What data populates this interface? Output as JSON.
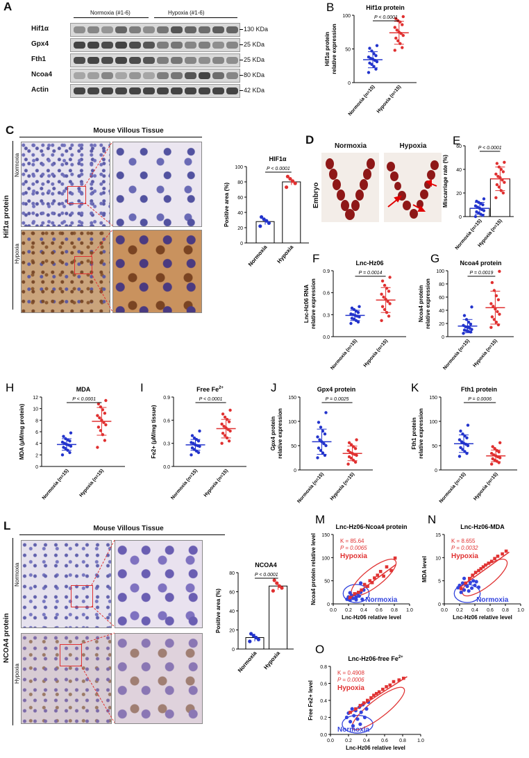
{
  "panels": {
    "A": {
      "letter": "A",
      "group_normoxia": "Normoxia (#1-6)",
      "group_hypoxia": "Hypoxia (#1-6)",
      "rows": [
        {
          "name": "Hif1α",
          "size": "130 KDa"
        },
        {
          "name": "Gpx4",
          "size": "25 KDa"
        },
        {
          "name": "Fth1",
          "size": "25 KDa"
        },
        {
          "name": "Ncoa4",
          "size": "80 KDa"
        },
        {
          "name": "Actin",
          "size": "42 KDa"
        }
      ]
    },
    "C": {
      "letter": "C",
      "header": "Mouse Villous Tissue",
      "side_label": "Hif1α protein",
      "row_normoxia": "Normoxia",
      "row_hypoxia": "Hypoxia"
    },
    "D": {
      "letter": "D",
      "col_normoxia": "Normoxia",
      "col_hypoxia": "Hypoxia",
      "row_label": "Embryo"
    },
    "L": {
      "letter": "L",
      "header": "Mouse Villous Tissue",
      "side_label": "NCOA4 protein",
      "row_normoxia": "Normoxia",
      "row_hypoxia": "Hypoxia"
    }
  },
  "chart_data": [
    {
      "id": "B",
      "type": "scatter",
      "letter": "B",
      "title": "Hif1α protein",
      "ylabel": "Hif1α protein\nrelative expression",
      "ylim": [
        0,
        100
      ],
      "yticks": [
        0,
        50,
        100
      ],
      "categories": [
        "Normoxia (n=15)",
        "Hypoxia (n=15)"
      ],
      "pvalue": "P < 0.0001",
      "series": [
        {
          "name": "Normoxia (n=15)",
          "color": "#2233cc",
          "mean": 34,
          "sd": 12,
          "values": [
            15,
            20,
            24,
            27,
            29,
            31,
            33,
            35,
            36,
            38,
            40,
            43,
            47,
            51,
            55
          ]
        },
        {
          "name": "Hypoxia (n=15)",
          "color": "#e03030",
          "mean": 74,
          "sd": 17,
          "values": [
            48,
            52,
            58,
            62,
            66,
            70,
            73,
            75,
            78,
            82,
            86,
            90,
            92,
            95,
            98
          ]
        }
      ]
    },
    {
      "id": "C",
      "type": "bar",
      "title": "HIF1α",
      "ylabel": "Positive area (%)",
      "ylim": [
        0,
        100
      ],
      "yticks": [
        0,
        20,
        40,
        60,
        80,
        100
      ],
      "categories": [
        "Normoxia",
        "Hypoxia"
      ],
      "pvalue": "P < 0.0001",
      "series": [
        {
          "name": "",
          "values": [
            28,
            80
          ],
          "points": [
            [
              22,
              26,
              29,
              31,
              34
            ],
            [
              73,
              78,
              81,
              84,
              87
            ]
          ],
          "colors": [
            "#2233cc",
            "#e03030"
          ]
        }
      ]
    },
    {
      "id": "E",
      "type": "scatter",
      "letter": "E",
      "title": "",
      "ylabel": "Miscarriage rate (%)",
      "ylim": [
        0,
        60
      ],
      "yticks": [
        0,
        20,
        40,
        60
      ],
      "categories": [
        "Normoxia (n=15)",
        "Hypoxia (n=15)"
      ],
      "pvalue": "P < 0.0001",
      "bars": true,
      "series": [
        {
          "name": "Normoxia (n=15)",
          "color": "#2233cc",
          "mean": 7,
          "sd": 5,
          "values": [
            0,
            1,
            2,
            3,
            4,
            5,
            6,
            7,
            8,
            9,
            10,
            11,
            12,
            13,
            15
          ]
        },
        {
          "name": "Hypoxia (n=15)",
          "color": "#e03030",
          "mean": 32,
          "sd": 10,
          "values": [
            16,
            20,
            22,
            25,
            27,
            29,
            31,
            33,
            34,
            36,
            38,
            40,
            42,
            45,
            46
          ]
        }
      ]
    },
    {
      "id": "F",
      "type": "scatter",
      "letter": "F",
      "title": "Lnc-Hz06",
      "ylabel": "Lnc-Hz06 RNA\nrelative expression",
      "ylim": [
        0,
        0.9
      ],
      "yticks": [
        0.0,
        0.3,
        0.6,
        0.9
      ],
      "ytick_labels": [
        "0.0",
        "0.3",
        "0.6",
        "0.9"
      ],
      "categories": [
        "Normoxia (n=15)",
        "Hypoxia (n=15)"
      ],
      "pvalue": "P = 0.0014",
      "series": [
        {
          "name": "Normoxia (n=15)",
          "color": "#2233cc",
          "mean": 0.29,
          "sd": 0.07,
          "values": [
            0.18,
            0.2,
            0.22,
            0.24,
            0.25,
            0.27,
            0.28,
            0.29,
            0.3,
            0.31,
            0.33,
            0.35,
            0.37,
            0.39,
            0.41
          ]
        },
        {
          "name": "Hypoxia (n=15)",
          "color": "#e03030",
          "mean": 0.5,
          "sd": 0.17,
          "values": [
            0.22,
            0.28,
            0.33,
            0.37,
            0.41,
            0.45,
            0.48,
            0.51,
            0.54,
            0.58,
            0.62,
            0.66,
            0.7,
            0.76,
            0.81
          ]
        }
      ]
    },
    {
      "id": "G",
      "type": "scatter",
      "letter": "G",
      "title": "Ncoa4 protein",
      "ylabel": "Ncoa4 protein\nrelative expression",
      "ylim": [
        0,
        100
      ],
      "yticks": [
        0,
        20,
        40,
        60,
        80,
        100
      ],
      "categories": [
        "Normoxia (n=15)",
        "Hypoxia (n=15)"
      ],
      "pvalue": "P = 0.0019",
      "series": [
        {
          "name": "Normoxia (n=15)",
          "color": "#2233cc",
          "mean": 16,
          "sd": 10,
          "values": [
            5,
            7,
            8,
            9,
            10,
            11,
            13,
            14,
            15,
            17,
            19,
            22,
            26,
            32,
            45
          ]
        },
        {
          "name": "Hypoxia (n=15)",
          "color": "#e03030",
          "mean": 44,
          "sd": 25,
          "values": [
            14,
            18,
            22,
            26,
            30,
            34,
            38,
            42,
            46,
            50,
            56,
            62,
            70,
            82,
            99
          ]
        }
      ]
    },
    {
      "id": "H",
      "type": "scatter",
      "letter": "H",
      "title": "MDA",
      "ylabel": "MDA (μM/mg protein)",
      "ylim": [
        0,
        12
      ],
      "yticks": [
        0,
        2,
        4,
        6,
        8,
        10,
        12
      ],
      "categories": [
        "Normoxia (n=15)",
        "Hypoxia (n=15)"
      ],
      "pvalue": "P < 0.0001",
      "series": [
        {
          "name": "Normoxia (n=15)",
          "color": "#2233cc",
          "mean": 3.8,
          "sd": 1.0,
          "values": [
            2.0,
            2.4,
            2.8,
            3.1,
            3.3,
            3.5,
            3.7,
            3.8,
            4.0,
            4.2,
            4.4,
            4.6,
            4.8,
            5.2,
            5.8
          ]
        },
        {
          "name": "Hypoxia (n=15)",
          "color": "#e03030",
          "mean": 7.8,
          "sd": 2.4,
          "values": [
            3.3,
            4.5,
            5.5,
            6.2,
            6.8,
            7.2,
            7.6,
            8.0,
            8.4,
            8.8,
            9.2,
            9.8,
            10.3,
            10.8,
            11.4
          ]
        }
      ]
    },
    {
      "id": "I",
      "type": "scatter",
      "letter": "I",
      "title": "Free Fe",
      "title_sup": "2+",
      "ylabel": "Fe2+ (μM/mg tissue)",
      "ylim": [
        0,
        0.9
      ],
      "yticks": [
        0.0,
        0.3,
        0.6,
        0.9
      ],
      "ytick_labels": [
        "0.0",
        "0.3",
        "0.6",
        "0.9"
      ],
      "categories": [
        "Normoxia (n=15)",
        "Hypoxia (n=15)"
      ],
      "pvalue": "P < 0.0001",
      "series": [
        {
          "name": "Normoxia (n=15)",
          "color": "#2233cc",
          "mean": 0.28,
          "sd": 0.07,
          "values": [
            0.15,
            0.18,
            0.2,
            0.22,
            0.24,
            0.26,
            0.27,
            0.28,
            0.3,
            0.31,
            0.33,
            0.35,
            0.37,
            0.4,
            0.46
          ]
        },
        {
          "name": "Hypoxia (n=15)",
          "color": "#e03030",
          "mean": 0.49,
          "sd": 0.12,
          "values": [
            0.3,
            0.33,
            0.37,
            0.4,
            0.43,
            0.46,
            0.48,
            0.5,
            0.52,
            0.55,
            0.58,
            0.61,
            0.64,
            0.68,
            0.73
          ]
        }
      ]
    },
    {
      "id": "J",
      "type": "scatter",
      "letter": "J",
      "title": "Gpx4 protein",
      "ylabel": "Gpx4 protein\nrelative expression",
      "ylim": [
        0,
        150
      ],
      "yticks": [
        0,
        50,
        100,
        150
      ],
      "categories": [
        "Normoxia (n=15)",
        "Hypoxia (n=15)"
      ],
      "pvalue": "P = 0.0025",
      "series": [
        {
          "name": "Normoxia (n=15)",
          "color": "#2233cc",
          "mean": 58,
          "sd": 26,
          "values": [
            25,
            30,
            35,
            40,
            45,
            50,
            54,
            58,
            62,
            68,
            74,
            80,
            88,
            98,
            118
          ]
        },
        {
          "name": "Hypoxia (n=15)",
          "color": "#e03030",
          "mean": 34,
          "sd": 15,
          "values": [
            12,
            16,
            20,
            24,
            27,
            30,
            32,
            34,
            36,
            40,
            44,
            48,
            52,
            56,
            62
          ]
        }
      ]
    },
    {
      "id": "K",
      "type": "scatter",
      "letter": "K",
      "title": "Fth1 protein",
      "ylabel": "Fth1 protein\nrelative expression",
      "ylim": [
        0,
        150
      ],
      "yticks": [
        0,
        50,
        100,
        150
      ],
      "categories": [
        "Normoxia (n=15)",
        "Hypoxia (n=15)"
      ],
      "pvalue": "P = 0.0006",
      "series": [
        {
          "name": "Normoxia (n=15)",
          "color": "#2233cc",
          "mean": 54,
          "sd": 18,
          "values": [
            28,
            34,
            38,
            42,
            46,
            50,
            53,
            55,
            58,
            62,
            66,
            70,
            74,
            80,
            92
          ]
        },
        {
          "name": "Hypoxia (n=15)",
          "color": "#e03030",
          "mean": 29,
          "sd": 12,
          "values": [
            12,
            15,
            18,
            20,
            23,
            25,
            27,
            29,
            31,
            34,
            37,
            40,
            44,
            48,
            56
          ]
        }
      ]
    },
    {
      "id": "L",
      "type": "bar",
      "title": "NCOA4",
      "ylabel": "Positive area (%)",
      "ylim": [
        0,
        80
      ],
      "yticks": [
        0,
        20,
        40,
        60,
        80
      ],
      "categories": [
        "Normoxia",
        "Hypoxia"
      ],
      "pvalue": "P < 0.0001",
      "series": [
        {
          "name": "",
          "values": [
            12,
            66
          ],
          "points": [
            [
              8,
              10,
              12,
              14,
              16
            ],
            [
              61,
              64,
              66,
              69,
              72
            ]
          ],
          "colors": [
            "#2233cc",
            "#e03030"
          ]
        }
      ]
    },
    {
      "id": "M",
      "type": "scatter",
      "letter": "M",
      "title": "Lnc-Hz06-Ncoa4 protein",
      "xlabel": "Lnc-Hz06  relative level",
      "ylabel": "Ncoa4 protein relative level",
      "xlim": [
        0,
        1
      ],
      "ylim": [
        0,
        150
      ],
      "xticks": [
        0.0,
        0.2,
        0.4,
        0.6,
        0.8,
        1.0
      ],
      "yticks": [
        0,
        50,
        100,
        150
      ],
      "xtick_labels": [
        "0.0",
        "0.2",
        "0.4",
        "0.6",
        "0.8",
        "1.0"
      ],
      "annotation_k": "K = 85.64",
      "annotation_p": "P = 0.0065",
      "label_hypoxia": "Hypoxia",
      "label_normoxia": "Normoxia",
      "series": [
        {
          "name": "Normoxia",
          "color": "#3344dd",
          "x": [
            0.18,
            0.2,
            0.22,
            0.24,
            0.26,
            0.28,
            0.3,
            0.32,
            0.34,
            0.36,
            0.38,
            0.4,
            0.22,
            0.3,
            0.36
          ],
          "y": [
            10,
            15,
            8,
            18,
            12,
            20,
            14,
            22,
            17,
            25,
            10,
            30,
            24,
            9,
            45
          ]
        },
        {
          "name": "Hypoxia",
          "color": "#e03333",
          "x": [
            0.22,
            0.28,
            0.33,
            0.37,
            0.41,
            0.45,
            0.48,
            0.51,
            0.54,
            0.58,
            0.62,
            0.66,
            0.7,
            0.76,
            0.81
          ],
          "y": [
            14,
            22,
            25,
            30,
            42,
            38,
            50,
            46,
            56,
            62,
            70,
            60,
            80,
            72,
            99
          ]
        }
      ],
      "fit": [
        [
          0.2,
          10
        ],
        [
          0.82,
          85
        ]
      ],
      "fit_color": "#e03333"
    },
    {
      "id": "N",
      "type": "scatter",
      "letter": "N",
      "title": "Lnc-Hz06-MDA",
      "xlabel": "Lnc-Hz06 relative level",
      "ylabel": "MDA level",
      "xlim": [
        0,
        1
      ],
      "ylim": [
        0,
        15
      ],
      "xticks": [
        0.0,
        0.2,
        0.4,
        0.6,
        0.8,
        1.0
      ],
      "yticks": [
        0,
        5,
        10,
        15
      ],
      "xtick_labels": [
        "0.0",
        "0.2",
        "0.4",
        "0.6",
        "0.8",
        "1.0"
      ],
      "annotation_k": "K = 8.655",
      "annotation_p": "P = 0.0032",
      "label_hypoxia": "Hypoxia",
      "label_normoxia": "Normoxia",
      "series": [
        {
          "name": "Normoxia",
          "color": "#3344dd",
          "x": [
            0.18,
            0.2,
            0.22,
            0.24,
            0.26,
            0.28,
            0.3,
            0.32,
            0.34,
            0.36,
            0.38,
            0.4,
            0.42,
            0.45,
            0.26
          ],
          "y": [
            3.5,
            4.0,
            2.5,
            4.5,
            3.0,
            4.2,
            3.8,
            2.8,
            4.6,
            3.4,
            5.0,
            4.0,
            4.8,
            3.6,
            5.5
          ]
        },
        {
          "name": "Hypoxia",
          "color": "#e03333",
          "x": [
            0.22,
            0.28,
            0.33,
            0.37,
            0.41,
            0.45,
            0.48,
            0.51,
            0.54,
            0.58,
            0.62,
            0.66,
            0.7,
            0.76,
            0.81
          ],
          "y": [
            3.3,
            4.5,
            5.5,
            6.2,
            6.8,
            7.2,
            7.6,
            8.0,
            8.4,
            8.8,
            9.2,
            9.8,
            10.3,
            10.8,
            11.4
          ]
        }
      ],
      "fit": [
        [
          0.2,
          3.5
        ],
        [
          0.85,
          11.2
        ]
      ],
      "fit_color": "#e03333"
    },
    {
      "id": "O",
      "type": "scatter",
      "letter": "O",
      "title": "Lnc-Hz06-free Fe",
      "title_sup": "2+",
      "xlabel": "Lnc-Hz06 relative level",
      "ylabel": "Free Fe2+ level",
      "xlim": [
        0,
        1
      ],
      "ylim": [
        0,
        0.8
      ],
      "xticks": [
        0.0,
        0.2,
        0.4,
        0.6,
        0.8,
        1.0
      ],
      "yticks": [
        0.0,
        0.2,
        0.4,
        0.6,
        0.8
      ],
      "xtick_labels": [
        "0.0",
        "0.2",
        "0.4",
        "0.6",
        "0.8",
        "1.0"
      ],
      "ytick_labels": [
        "0.0",
        "0.2",
        "0.4",
        "0.6",
        "0.8"
      ],
      "annotation_k": "K = 0.4908",
      "annotation_p": "P = 0.0006",
      "label_hypoxia": "Hypoxia",
      "label_normoxia": "Normoxia",
      "series": [
        {
          "name": "Normoxia",
          "color": "#3344dd",
          "x": [
            0.18,
            0.2,
            0.22,
            0.24,
            0.26,
            0.28,
            0.3,
            0.32,
            0.34,
            0.36,
            0.38,
            0.4,
            0.42,
            0.25,
            0.33
          ],
          "y": [
            0.2,
            0.25,
            0.15,
            0.3,
            0.22,
            0.28,
            0.18,
            0.32,
            0.26,
            0.35,
            0.2,
            0.3,
            0.38,
            0.1,
            0.12
          ]
        },
        {
          "name": "Hypoxia",
          "color": "#e03333",
          "x": [
            0.22,
            0.28,
            0.33,
            0.37,
            0.41,
            0.45,
            0.48,
            0.51,
            0.54,
            0.58,
            0.62,
            0.66,
            0.7,
            0.76,
            0.81
          ],
          "y": [
            0.26,
            0.3,
            0.34,
            0.37,
            0.4,
            0.43,
            0.46,
            0.48,
            0.5,
            0.53,
            0.56,
            0.58,
            0.62,
            0.64,
            0.66
          ]
        }
      ],
      "fit": [
        [
          0.2,
          0.24
        ],
        [
          0.85,
          0.68
        ]
      ],
      "fit_color": "#e03333"
    }
  ]
}
